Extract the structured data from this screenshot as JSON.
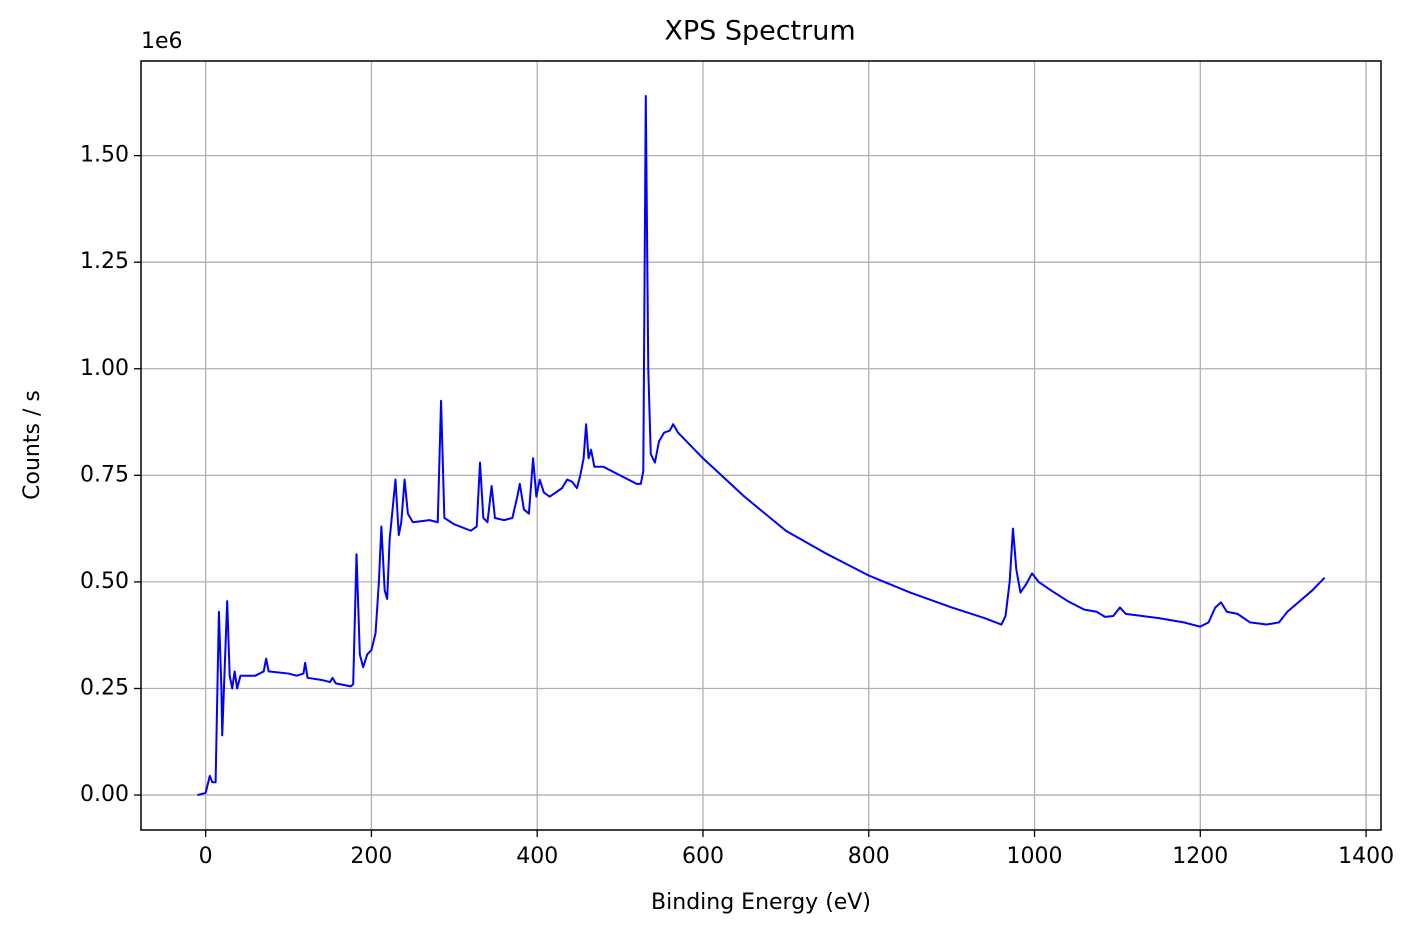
{
  "chart_data": {
    "type": "line",
    "title": "XPS Spectrum",
    "x_label": "Binding Energy (eV)",
    "y_label": "Counts / s",
    "y_offset_label": "1e6",
    "color": "#0000ff",
    "grid": true,
    "xlim": [
      -78,
      1418
    ],
    "ylim": [
      -82000,
      1722000
    ],
    "xticks": [
      0,
      200,
      400,
      600,
      800,
      1000,
      1200,
      1400
    ],
    "yticks": [
      {
        "value": 0,
        "label": "0.00"
      },
      {
        "value": 250000,
        "label": "0.25"
      },
      {
        "value": 500000,
        "label": "0.50"
      },
      {
        "value": 750000,
        "label": "0.75"
      },
      {
        "value": 1000000,
        "label": "1.00"
      },
      {
        "value": 1250000,
        "label": "1.25"
      },
      {
        "value": 1500000,
        "label": "1.50"
      }
    ],
    "x": [
      -10,
      0,
      5,
      8,
      12,
      16,
      19,
      20,
      23,
      26,
      29,
      32,
      35,
      38,
      42,
      60,
      70,
      73,
      76,
      100,
      110,
      118,
      120,
      123,
      140,
      150,
      153,
      157,
      175,
      178,
      182,
      186,
      190,
      195,
      200,
      205,
      209,
      212,
      216,
      219,
      222,
      226,
      229,
      233,
      236,
      240,
      244,
      250,
      270,
      280,
      284,
      288,
      300,
      320,
      327,
      331,
      335,
      340,
      345,
      349,
      360,
      370,
      376,
      379,
      384,
      390,
      395,
      399,
      403,
      408,
      415,
      430,
      436,
      442,
      448,
      452,
      456,
      459,
      462,
      465,
      469,
      480,
      500,
      520,
      525,
      528,
      531,
      534,
      537,
      542,
      547,
      553,
      560,
      564,
      570,
      600,
      650,
      700,
      750,
      800,
      850,
      900,
      940,
      960,
      965,
      970,
      974,
      978,
      983,
      990,
      997,
      1005,
      1020,
      1040,
      1060,
      1075,
      1085,
      1095,
      1103,
      1110,
      1130,
      1150,
      1180,
      1200,
      1210,
      1218,
      1225,
      1232,
      1245,
      1260,
      1280,
      1295,
      1305,
      1320,
      1335,
      1350
    ],
    "values": [
      0,
      5000,
      45000,
      30000,
      30000,
      430000,
      250000,
      140000,
      300000,
      455000,
      280000,
      250000,
      290000,
      250000,
      280000,
      280000,
      290000,
      320000,
      290000,
      285000,
      280000,
      285000,
      310000,
      275000,
      270000,
      265000,
      275000,
      262000,
      255000,
      260000,
      565000,
      330000,
      300000,
      330000,
      340000,
      380000,
      500000,
      630000,
      480000,
      460000,
      600000,
      680000,
      740000,
      610000,
      640000,
      740000,
      660000,
      640000,
      645000,
      640000,
      925000,
      650000,
      635000,
      620000,
      630000,
      780000,
      650000,
      640000,
      725000,
      650000,
      645000,
      650000,
      700000,
      730000,
      670000,
      660000,
      790000,
      700000,
      740000,
      710000,
      700000,
      720000,
      740000,
      735000,
      720000,
      750000,
      790000,
      870000,
      790000,
      810000,
      770000,
      770000,
      750000,
      730000,
      730000,
      760000,
      1640000,
      1000000,
      800000,
      780000,
      830000,
      850000,
      855000,
      870000,
      850000,
      790000,
      700000,
      620000,
      565000,
      515000,
      475000,
      440000,
      415000,
      400000,
      420000,
      500000,
      625000,
      530000,
      475000,
      495000,
      520000,
      500000,
      480000,
      455000,
      435000,
      430000,
      418000,
      420000,
      440000,
      425000,
      420000,
      415000,
      405000,
      395000,
      405000,
      440000,
      452000,
      430000,
      425000,
      405000,
      400000,
      405000,
      430000,
      455000,
      480000,
      510000
    ]
  }
}
